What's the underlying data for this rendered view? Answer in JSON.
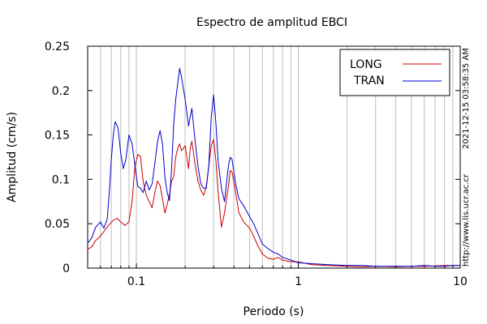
{
  "chart_data": {
    "type": "line",
    "title": "Espectro de amplitud EBCI",
    "xlabel": "Periodo (s)",
    "ylabel": "Amplitud (cm/s)",
    "xscale": "log",
    "xlim": [
      0.05,
      10
    ],
    "ylim": [
      0,
      0.25
    ],
    "xticks": [
      {
        "value": 0.1,
        "label": "0.1"
      },
      {
        "value": 1,
        "label": "1"
      },
      {
        "value": 10,
        "label": "10"
      }
    ],
    "yticks": [
      {
        "value": 0,
        "label": "0"
      },
      {
        "value": 0.05,
        "label": "0.05"
      },
      {
        "value": 0.1,
        "label": "0.1"
      },
      {
        "value": 0.15,
        "label": "0.15"
      },
      {
        "value": 0.2,
        "label": "0.2"
      },
      {
        "value": 0.25,
        "label": "0.25"
      }
    ],
    "grid": true,
    "legend_position": "top-right",
    "series": [
      {
        "name": "LONG",
        "color": "#cc0000",
        "points": [
          [
            0.05,
            0.021
          ],
          [
            0.053,
            0.024
          ],
          [
            0.056,
            0.031
          ],
          [
            0.06,
            0.036
          ],
          [
            0.064,
            0.043
          ],
          [
            0.068,
            0.049
          ],
          [
            0.072,
            0.054
          ],
          [
            0.076,
            0.056
          ],
          [
            0.08,
            0.052
          ],
          [
            0.085,
            0.048
          ],
          [
            0.09,
            0.052
          ],
          [
            0.094,
            0.075
          ],
          [
            0.098,
            0.115
          ],
          [
            0.102,
            0.128
          ],
          [
            0.106,
            0.126
          ],
          [
            0.11,
            0.098
          ],
          [
            0.115,
            0.082
          ],
          [
            0.12,
            0.075
          ],
          [
            0.125,
            0.068
          ],
          [
            0.13,
            0.085
          ],
          [
            0.135,
            0.098
          ],
          [
            0.14,
            0.093
          ],
          [
            0.145,
            0.078
          ],
          [
            0.15,
            0.062
          ],
          [
            0.155,
            0.072
          ],
          [
            0.16,
            0.083
          ],
          [
            0.165,
            0.098
          ],
          [
            0.17,
            0.103
          ],
          [
            0.175,
            0.125
          ],
          [
            0.18,
            0.135
          ],
          [
            0.185,
            0.14
          ],
          [
            0.19,
            0.132
          ],
          [
            0.2,
            0.138
          ],
          [
            0.21,
            0.112
          ],
          [
            0.215,
            0.135
          ],
          [
            0.22,
            0.143
          ],
          [
            0.23,
            0.118
          ],
          [
            0.24,
            0.098
          ],
          [
            0.25,
            0.088
          ],
          [
            0.26,
            0.082
          ],
          [
            0.27,
            0.092
          ],
          [
            0.28,
            0.115
          ],
          [
            0.29,
            0.138
          ],
          [
            0.3,
            0.145
          ],
          [
            0.31,
            0.12
          ],
          [
            0.32,
            0.085
          ],
          [
            0.335,
            0.046
          ],
          [
            0.35,
            0.062
          ],
          [
            0.37,
            0.092
          ],
          [
            0.38,
            0.11
          ],
          [
            0.39,
            0.108
          ],
          [
            0.41,
            0.085
          ],
          [
            0.43,
            0.062
          ],
          [
            0.46,
            0.052
          ],
          [
            0.5,
            0.045
          ],
          [
            0.53,
            0.036
          ],
          [
            0.56,
            0.026
          ],
          [
            0.6,
            0.016
          ],
          [
            0.65,
            0.011
          ],
          [
            0.7,
            0.01
          ],
          [
            0.75,
            0.012
          ],
          [
            0.8,
            0.009
          ],
          [
            0.9,
            0.007
          ],
          [
            1.0,
            0.007
          ],
          [
            1.2,
            0.004
          ],
          [
            1.5,
            0.003
          ],
          [
            2,
            0.002
          ],
          [
            2.5,
            0.0015
          ],
          [
            3,
            0.002
          ],
          [
            4,
            0.0015
          ],
          [
            5,
            0.002
          ],
          [
            6,
            0.002
          ],
          [
            7,
            0.0025
          ],
          [
            8,
            0.003
          ],
          [
            9,
            0.003
          ],
          [
            10,
            0.003
          ]
        ]
      },
      {
        "name": "TRAN",
        "color": "#0000cc",
        "points": [
          [
            0.05,
            0.028
          ],
          [
            0.053,
            0.034
          ],
          [
            0.056,
            0.046
          ],
          [
            0.06,
            0.052
          ],
          [
            0.063,
            0.045
          ],
          [
            0.066,
            0.055
          ],
          [
            0.068,
            0.085
          ],
          [
            0.07,
            0.122
          ],
          [
            0.072,
            0.15
          ],
          [
            0.074,
            0.165
          ],
          [
            0.077,
            0.158
          ],
          [
            0.08,
            0.13
          ],
          [
            0.083,
            0.112
          ],
          [
            0.086,
            0.122
          ],
          [
            0.09,
            0.15
          ],
          [
            0.094,
            0.14
          ],
          [
            0.098,
            0.115
          ],
          [
            0.102,
            0.092
          ],
          [
            0.106,
            0.09
          ],
          [
            0.11,
            0.085
          ],
          [
            0.115,
            0.098
          ],
          [
            0.12,
            0.088
          ],
          [
            0.125,
            0.095
          ],
          [
            0.13,
            0.118
          ],
          [
            0.135,
            0.142
          ],
          [
            0.14,
            0.155
          ],
          [
            0.145,
            0.14
          ],
          [
            0.15,
            0.102
          ],
          [
            0.155,
            0.085
          ],
          [
            0.16,
            0.076
          ],
          [
            0.165,
            0.112
          ],
          [
            0.17,
            0.162
          ],
          [
            0.175,
            0.19
          ],
          [
            0.18,
            0.208
          ],
          [
            0.185,
            0.225
          ],
          [
            0.19,
            0.215
          ],
          [
            0.2,
            0.19
          ],
          [
            0.21,
            0.16
          ],
          [
            0.22,
            0.18
          ],
          [
            0.23,
            0.145
          ],
          [
            0.24,
            0.115
          ],
          [
            0.25,
            0.095
          ],
          [
            0.26,
            0.09
          ],
          [
            0.27,
            0.09
          ],
          [
            0.28,
            0.115
          ],
          [
            0.29,
            0.17
          ],
          [
            0.3,
            0.195
          ],
          [
            0.31,
            0.162
          ],
          [
            0.32,
            0.12
          ],
          [
            0.335,
            0.09
          ],
          [
            0.35,
            0.075
          ],
          [
            0.37,
            0.115
          ],
          [
            0.38,
            0.125
          ],
          [
            0.39,
            0.122
          ],
          [
            0.41,
            0.095
          ],
          [
            0.43,
            0.078
          ],
          [
            0.46,
            0.07
          ],
          [
            0.5,
            0.058
          ],
          [
            0.53,
            0.05
          ],
          [
            0.56,
            0.04
          ],
          [
            0.6,
            0.027
          ],
          [
            0.65,
            0.022
          ],
          [
            0.7,
            0.018
          ],
          [
            0.75,
            0.016
          ],
          [
            0.8,
            0.012
          ],
          [
            0.9,
            0.009
          ],
          [
            1.0,
            0.006
          ],
          [
            1.2,
            0.005
          ],
          [
            1.5,
            0.004
          ],
          [
            2,
            0.003
          ],
          [
            2.5,
            0.003
          ],
          [
            3,
            0.002
          ],
          [
            4,
            0.002
          ],
          [
            5,
            0.002
          ],
          [
            6,
            0.003
          ],
          [
            7,
            0.002
          ],
          [
            8,
            0.002
          ],
          [
            9,
            0.003
          ],
          [
            10,
            0.003
          ]
        ]
      }
    ]
  },
  "side_labels": {
    "timestamp": "2021-12-15 03:58:35 AM",
    "website": "http://www.lis.ucr.ac.cr"
  }
}
